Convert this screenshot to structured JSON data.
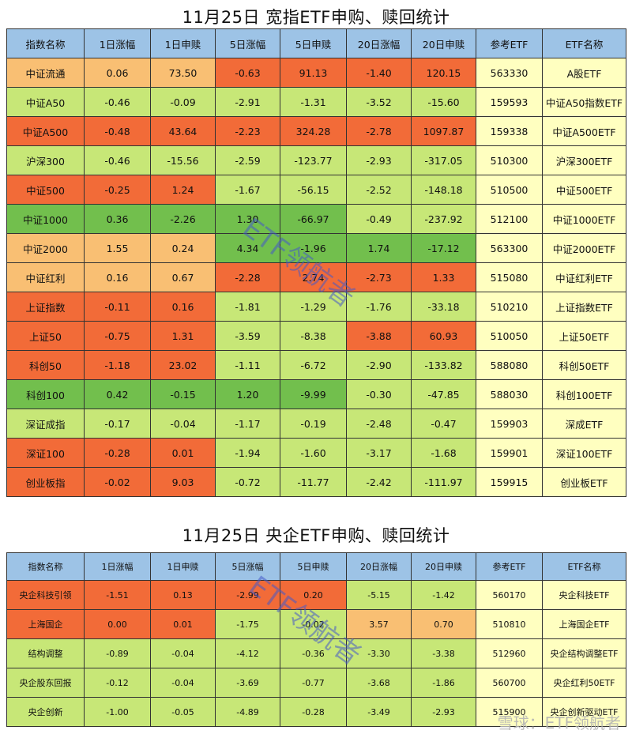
{
  "title1": "11月25日   宽指ETF申购、赎回统计",
  "title2": "11月25日   央企ETF申购、赎回统计",
  "headers": [
    "指数名称",
    "1日涨幅",
    "1日申赎",
    "5日涨幅",
    "5日申赎",
    "20日涨幅",
    "20日申赎",
    "参考ETF",
    "ETF名称"
  ],
  "colors": {
    "red": "#f26b38",
    "orange": "#f9bf73",
    "lightgreen": "#c7e777",
    "green": "#72bf4d",
    "yellow": "#ffffc0",
    "header": "#9dc3e6"
  },
  "table1": [
    {
      "cells": [
        "中证流通",
        "0.06",
        "73.50",
        "-0.63",
        "91.13",
        "-1.40",
        "120.15",
        "563330",
        "A股ETF"
      ],
      "colors": [
        "orange",
        "orange",
        "orange",
        "red",
        "red",
        "red",
        "red",
        "yellow",
        "yellow"
      ]
    },
    {
      "cells": [
        "中证A50",
        "-0.46",
        "-0.09",
        "-2.91",
        "-1.31",
        "-3.52",
        "-15.60",
        "159593",
        "中证A50指数ETF"
      ],
      "colors": [
        "lightgreen",
        "lightgreen",
        "lightgreen",
        "lightgreen",
        "lightgreen",
        "lightgreen",
        "lightgreen",
        "yellow",
        "yellow"
      ]
    },
    {
      "cells": [
        "中证A500",
        "-0.48",
        "43.64",
        "-2.23",
        "324.28",
        "-2.78",
        "1097.87",
        "159338",
        "中证A500ETF"
      ],
      "colors": [
        "red",
        "red",
        "red",
        "red",
        "red",
        "red",
        "red",
        "yellow",
        "yellow"
      ]
    },
    {
      "cells": [
        "沪深300",
        "-0.46",
        "-15.56",
        "-2.59",
        "-123.77",
        "-2.93",
        "-317.05",
        "510300",
        "沪深300ETF"
      ],
      "colors": [
        "lightgreen",
        "lightgreen",
        "lightgreen",
        "lightgreen",
        "lightgreen",
        "lightgreen",
        "lightgreen",
        "yellow",
        "yellow"
      ]
    },
    {
      "cells": [
        "中证500",
        "-0.25",
        "1.24",
        "-1.67",
        "-56.15",
        "-2.52",
        "-148.18",
        "510500",
        "中证500ETF"
      ],
      "colors": [
        "red",
        "red",
        "red",
        "lightgreen",
        "lightgreen",
        "lightgreen",
        "lightgreen",
        "yellow",
        "yellow"
      ]
    },
    {
      "cells": [
        "中证1000",
        "0.36",
        "-2.26",
        "1.30",
        "-66.97",
        "-0.49",
        "-237.92",
        "512100",
        "中证1000ETF"
      ],
      "colors": [
        "green",
        "green",
        "green",
        "green",
        "green",
        "lightgreen",
        "lightgreen",
        "yellow",
        "yellow"
      ]
    },
    {
      "cells": [
        "中证2000",
        "1.55",
        "0.24",
        "4.34",
        "-1.96",
        "1.74",
        "-17.12",
        "563300",
        "中证2000ETF"
      ],
      "colors": [
        "orange",
        "orange",
        "orange",
        "green",
        "green",
        "green",
        "green",
        "yellow",
        "yellow"
      ]
    },
    {
      "cells": [
        "中证红利",
        "0.16",
        "0.67",
        "-2.28",
        "2.74",
        "-2.73",
        "1.33",
        "515080",
        "中证红利ETF"
      ],
      "colors": [
        "orange",
        "orange",
        "orange",
        "red",
        "red",
        "red",
        "red",
        "yellow",
        "yellow"
      ]
    },
    {
      "cells": [
        "上证指数",
        "-0.11",
        "0.16",
        "-1.81",
        "-1.29",
        "-1.76",
        "-33.18",
        "510210",
        "上证指数ETF"
      ],
      "colors": [
        "red",
        "red",
        "red",
        "lightgreen",
        "lightgreen",
        "lightgreen",
        "lightgreen",
        "yellow",
        "yellow"
      ]
    },
    {
      "cells": [
        "上证50",
        "-0.75",
        "1.31",
        "-3.59",
        "-8.38",
        "-3.88",
        "60.93",
        "510050",
        "上证50ETF"
      ],
      "colors": [
        "red",
        "red",
        "red",
        "lightgreen",
        "lightgreen",
        "red",
        "red",
        "yellow",
        "yellow"
      ]
    },
    {
      "cells": [
        "科创50",
        "-1.18",
        "23.02",
        "-1.11",
        "-6.72",
        "-2.90",
        "-133.82",
        "588080",
        "科创50ETF"
      ],
      "colors": [
        "red",
        "red",
        "red",
        "lightgreen",
        "lightgreen",
        "lightgreen",
        "lightgreen",
        "yellow",
        "yellow"
      ]
    },
    {
      "cells": [
        "科创100",
        "0.42",
        "-0.15",
        "1.20",
        "-9.99",
        "-0.30",
        "-47.85",
        "588030",
        "科创100ETF"
      ],
      "colors": [
        "green",
        "green",
        "green",
        "green",
        "green",
        "lightgreen",
        "lightgreen",
        "yellow",
        "yellow"
      ]
    },
    {
      "cells": [
        "深证成指",
        "-0.17",
        "-0.04",
        "-1.17",
        "-0.19",
        "-2.48",
        "-0.47",
        "159903",
        "深成ETF"
      ],
      "colors": [
        "lightgreen",
        "lightgreen",
        "lightgreen",
        "lightgreen",
        "lightgreen",
        "lightgreen",
        "lightgreen",
        "yellow",
        "yellow"
      ]
    },
    {
      "cells": [
        "深证100",
        "-0.28",
        "0.01",
        "-1.94",
        "-1.60",
        "-3.17",
        "-1.68",
        "159901",
        "深证100ETF"
      ],
      "colors": [
        "red",
        "red",
        "red",
        "lightgreen",
        "lightgreen",
        "lightgreen",
        "lightgreen",
        "yellow",
        "yellow"
      ]
    },
    {
      "cells": [
        "创业板指",
        "-0.02",
        "9.03",
        "-0.72",
        "-11.77",
        "-2.42",
        "-111.97",
        "159915",
        "创业板ETF"
      ],
      "colors": [
        "red",
        "red",
        "red",
        "lightgreen",
        "lightgreen",
        "lightgreen",
        "lightgreen",
        "yellow",
        "yellow"
      ]
    }
  ],
  "table2": [
    {
      "cells": [
        "央企科技引领",
        "-1.51",
        "0.13",
        "-2.99",
        "0.20",
        "-5.15",
        "-1.42",
        "560170",
        "央企科技ETF"
      ],
      "colors": [
        "red",
        "red",
        "red",
        "red",
        "red",
        "lightgreen",
        "lightgreen",
        "yellow",
        "yellow"
      ]
    },
    {
      "cells": [
        "上海国企",
        "0.00",
        "0.01",
        "-1.75",
        "-0.02",
        "3.57",
        "0.70",
        "510810",
        "上海国企ETF"
      ],
      "colors": [
        "red",
        "red",
        "red",
        "lightgreen",
        "lightgreen",
        "orange",
        "orange",
        "yellow",
        "yellow"
      ]
    },
    {
      "cells": [
        "结构调整",
        "-0.89",
        "-0.04",
        "-4.12",
        "-0.36",
        "-3.30",
        "-3.38",
        "512960",
        "央企结构调整ETF"
      ],
      "colors": [
        "lightgreen",
        "lightgreen",
        "lightgreen",
        "lightgreen",
        "lightgreen",
        "lightgreen",
        "lightgreen",
        "yellow",
        "yellow"
      ]
    },
    {
      "cells": [
        "央企股东回报",
        "-0.12",
        "-0.04",
        "-3.69",
        "-0.77",
        "-3.68",
        "-1.86",
        "560700",
        "央企红利50ETF"
      ],
      "colors": [
        "lightgreen",
        "lightgreen",
        "lightgreen",
        "lightgreen",
        "lightgreen",
        "lightgreen",
        "lightgreen",
        "yellow",
        "yellow"
      ]
    },
    {
      "cells": [
        "央企创新",
        "-1.00",
        "-0.05",
        "-4.89",
        "-0.28",
        "-3.49",
        "-2.93",
        "515900",
        "央企创新驱动ETF"
      ],
      "colors": [
        "lightgreen",
        "lightgreen",
        "lightgreen",
        "lightgreen",
        "lightgreen",
        "lightgreen",
        "lightgreen",
        "yellow",
        "yellow"
      ]
    }
  ],
  "watermark": "ETF领航者",
  "footer_watermark": "雪球：ETF领航者"
}
